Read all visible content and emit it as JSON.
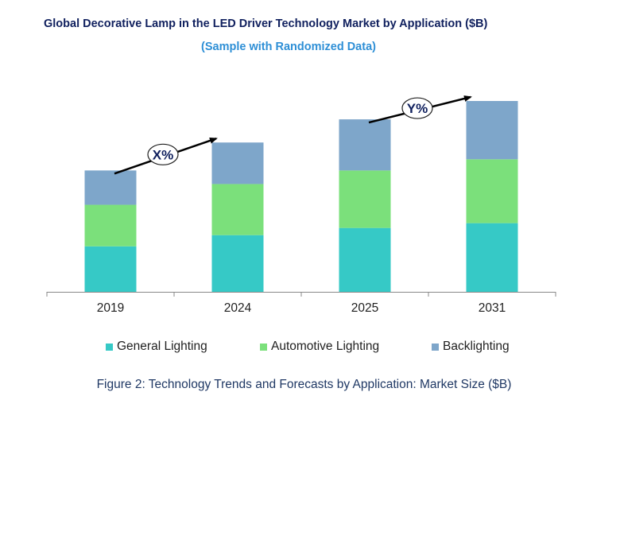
{
  "chart_data": {
    "type": "bar",
    "stacked": true,
    "title": "Global Decorative Lamp in the LED Driver Technology Market by Application ($B)",
    "subtitle": "(Sample with Randomized Data)",
    "categories": [
      "2019",
      "2024",
      "2025",
      "2031"
    ],
    "series": [
      {
        "name": "General Lighting",
        "color": "#36c9c6",
        "values": [
          57,
          71,
          80,
          86
        ]
      },
      {
        "name": "Automotive Lighting",
        "color": "#7be07b",
        "values": [
          52,
          64,
          72,
          80
        ]
      },
      {
        "name": "Backlighting",
        "color": "#7ea6ca",
        "values": [
          43,
          52,
          64,
          73
        ]
      }
    ],
    "ylim": [
      0,
      260
    ],
    "grid": false,
    "legend": "bottom",
    "annotations": [
      {
        "label": "X%",
        "from": "2019",
        "to": "2024"
      },
      {
        "label": "Y%",
        "from": "2025",
        "to": "2031"
      }
    ],
    "caption": "Figure 2: Technology Trends and Forecasts by Application: Market Size ($B)"
  }
}
